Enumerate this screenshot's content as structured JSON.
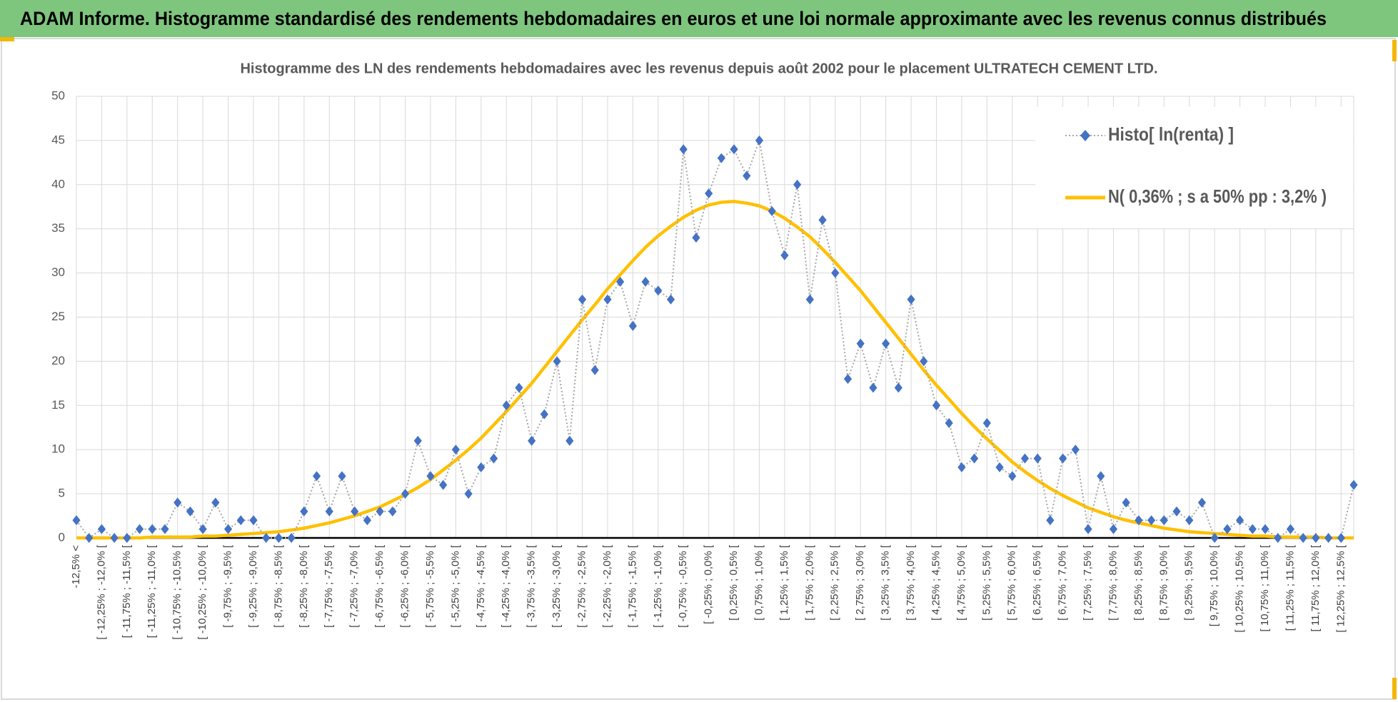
{
  "chart_data": {
    "type": "line",
    "header": "ADAM Informe. Histogramme standardisé des rendements hebdomadaires en euros et une loi normale approximante avec les revenus connus distribués",
    "title": "Histogramme  des LN des rendements  hebdomadaires avec les revenus depuis août 2002  pour le placement ULTRATECH CEMENT LTD.",
    "categories": [
      "-12,5% <",
      null,
      "[ -12,25% ; -12,0% [",
      null,
      "[ -11,75% ; -11,5% [",
      null,
      "[ -11,25% ; -11,0% [",
      null,
      "[ -10,75% ; -10,5% [",
      null,
      "[ -10,25% ; -10,0% [",
      null,
      "[ -9,75% ; -9,5% [",
      null,
      "[ -9,25% ; -9,0% [",
      null,
      "[ -8,75% ; -8,5% [",
      null,
      "[ -8,25% ; -8,0% [",
      null,
      "[ -7,75% ; -7,5% [",
      null,
      "[ -7,25% ; -7,0% [",
      null,
      "[ -6,75% ; -6,5% [",
      null,
      "[ -6,25% ; -6,0% [",
      null,
      "[ -5,75% ; -5,5% [",
      null,
      "[ -5,25% ; -5,0% [",
      null,
      "[ -4,75% ; -4,5% [",
      null,
      "[ -4,25% ; -4,0% [",
      null,
      "[ -3,75% ; -3,5% [",
      null,
      "[ -3,25% ; -3,0% [",
      null,
      "[ -2,75% ; -2,5% [",
      null,
      "[ -2,25% ; -2,0% [",
      null,
      "[ -1,75% ; -1,5% [",
      null,
      "[ -1,25% ; -1,0% [",
      null,
      "[ -0,75% ; -0,5% [",
      null,
      "[ -0,25% ; 0,0% [",
      null,
      "[ 0,25% ; 0,5% [",
      null,
      "[ 0,75% ; 1,0% [",
      null,
      "[ 1,25% ; 1,5% [",
      null,
      "[ 1,75% ; 2,0% [",
      null,
      "[ 2,25% ; 2,5% [",
      null,
      "[ 2,75% ; 3,0% [",
      null,
      "[ 3,25% ; 3,5% [",
      null,
      "[ 3,75% ; 4,0% [",
      null,
      "[ 4,25% ; 4,5% [",
      null,
      "[ 4,75% ; 5,0% [",
      null,
      "[ 5,25% ; 5,5% [",
      null,
      "[ 5,75% ; 6,0% [",
      null,
      "[ 6,25% ; 6,5% [",
      null,
      "[ 6,75% ; 7,0% [",
      null,
      "[ 7,25% ; 7,5% [",
      null,
      "[ 7,75% ; 8,0% [",
      null,
      "[ 8,25% ; 8,5% [",
      null,
      "[ 8,75% ; 9,0% [",
      null,
      "[ 9,25% ; 9,5% [",
      null,
      "[ 9,75% ; 10,0% [",
      null,
      "[ 10,25% ; 10,5% [",
      null,
      "[ 10,75% ; 11,0% [",
      null,
      "[ 11,25% ; 11,5% [",
      null,
      "[ 11,75% ; 12,0% [",
      null,
      "[ 12,25% ; 12,5% [",
      null
    ],
    "series": [
      {
        "name": "Histo[ ln(renta) ]",
        "color": "#4472c4",
        "line_color": "#a6a6a6",
        "values": [
          2,
          0,
          1,
          0,
          0,
          1,
          1,
          1,
          4,
          3,
          1,
          4,
          1,
          2,
          2,
          0,
          0,
          0,
          3,
          7,
          3,
          7,
          3,
          2,
          3,
          3,
          5,
          11,
          7,
          6,
          10,
          5,
          8,
          9,
          15,
          17,
          11,
          14,
          20,
          11,
          27,
          19,
          27,
          29,
          24,
          29,
          28,
          27,
          44,
          34,
          39,
          43,
          44,
          41,
          45,
          37,
          32,
          40,
          27,
          36,
          30,
          18,
          22,
          17,
          22,
          17,
          27,
          20,
          15,
          13,
          8,
          9,
          13,
          8,
          7,
          9,
          9,
          2,
          9,
          10,
          1,
          7,
          1,
          4,
          2,
          2,
          2,
          3,
          2,
          4,
          0,
          1,
          2,
          1,
          1,
          0,
          1,
          0,
          0,
          0,
          0,
          6
        ]
      },
      {
        "name": "N( 0,36% ; s a 50% pp : 3,2% )",
        "color": "#ffc000",
        "values": [
          0,
          0,
          0,
          0,
          0,
          0,
          0.1,
          0.1,
          0.1,
          0.1,
          0.2,
          0.2,
          0.3,
          0.4,
          0.5,
          0.6,
          0.7,
          0.9,
          1.1,
          1.4,
          1.7,
          2.1,
          2.5,
          3.0,
          3.5,
          4.2,
          4.9,
          5.7,
          6.6,
          7.7,
          8.8,
          10.0,
          11.3,
          12.8,
          14.3,
          15.9,
          17.5,
          19.3,
          21.1,
          22.9,
          24.7,
          26.4,
          28.2,
          29.8,
          31.4,
          32.9,
          34.2,
          35.3,
          36.3,
          37.1,
          37.7,
          38.0,
          38.1,
          37.9,
          37.6,
          37.0,
          36.2,
          35.2,
          34.1,
          32.7,
          31.2,
          29.6,
          28.0,
          26.2,
          24.4,
          22.6,
          20.8,
          19.0,
          17.3,
          15.7,
          14.1,
          12.6,
          11.2,
          9.9,
          8.6,
          7.5,
          6.5,
          5.6,
          4.8,
          4.1,
          3.4,
          2.9,
          2.4,
          2.0,
          1.7,
          1.4,
          1.1,
          0.9,
          0.7,
          0.6,
          0.5,
          0.4,
          0.3,
          0.2,
          0.2,
          0.1,
          0.1,
          0.1,
          0.1,
          0,
          0,
          0
        ]
      }
    ],
    "ylim": [
      0,
      50
    ],
    "yticks": [
      0,
      5,
      10,
      15,
      20,
      25,
      30,
      35,
      40,
      45,
      50
    ],
    "grid": true,
    "legend": "top-right"
  }
}
